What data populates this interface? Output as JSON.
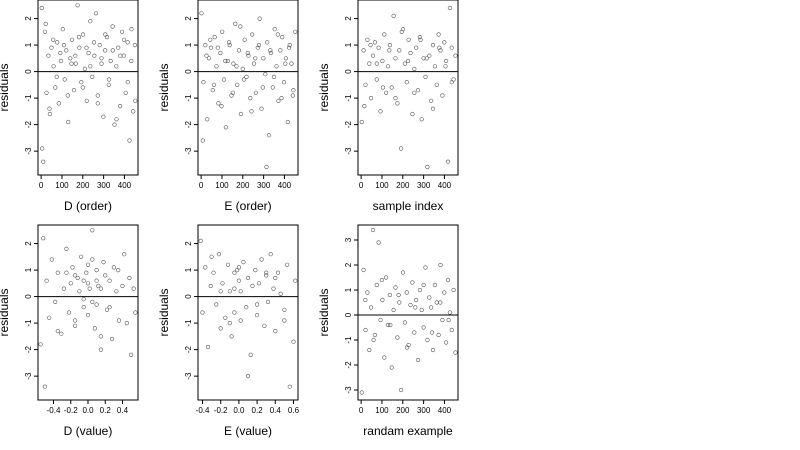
{
  "figure": {
    "background": "#ffffff",
    "point_color": "#555555",
    "axis_color": "#000000"
  },
  "chart_data": [
    {
      "type": "scatter",
      "title": "",
      "xlabel": "D (order)",
      "ylabel": "residuals",
      "xlim": [
        -15,
        465
      ],
      "ylim": [
        -3.9,
        2.7
      ],
      "xticks": [
        0,
        100,
        200,
        300,
        400
      ],
      "xtick_labels": [
        "0",
        "100",
        "200",
        "300",
        "400"
      ],
      "yticks": [
        -3,
        -2,
        -1,
        0,
        1,
        2
      ],
      "ytick_labels": [
        "-3",
        "-2",
        "-1",
        "0",
        "1",
        "2"
      ],
      "hline": 0,
      "grid": false,
      "legend": "none",
      "x": [
        3,
        10,
        18,
        26,
        35,
        42,
        50,
        60,
        68,
        77,
        85,
        95,
        104,
        113,
        121,
        130,
        140,
        148,
        158,
        166,
        175,
        183,
        193,
        201,
        210,
        219,
        228,
        236,
        245,
        255,
        263,
        272,
        281,
        290,
        299,
        307,
        316,
        325,
        334,
        343,
        352,
        361,
        370,
        379,
        388,
        397,
        406,
        415,
        424,
        433,
        442,
        450,
        5,
        22,
        40,
        58,
        75,
        92,
        110,
        128,
        146,
        164,
        182,
        200,
        218,
        236,
        254,
        272,
        290,
        308,
        326,
        344,
        362,
        380,
        398,
        416,
        434,
        452
      ],
      "y": [
        2.4,
        -3.4,
        1.5,
        -0.8,
        0.6,
        -1.6,
        0.9,
        0.2,
        -0.6,
        1.1,
        -1.2,
        0.4,
        1.6,
        -0.3,
        0.8,
        -1.9,
        0.5,
        1.2,
        -0.7,
        0.3,
        2.5,
        0.9,
        -0.4,
        1.4,
        0.1,
        -1.1,
        0.7,
        1.9,
        -0.2,
        0.6,
        2.2,
        -0.9,
        1.0,
        0.3,
        -1.7,
        0.8,
        1.3,
        -0.5,
        0.4,
        1.7,
        -2.0,
        0.2,
        0.9,
        -1.3,
        1.5,
        0.6,
        -0.8,
        1.1,
        -2.6,
        0.4,
        -1.5,
        1.0,
        -2.9,
        1.8,
        -1.4,
        1.2,
        -0.2,
        0.7,
        1.0,
        -0.9,
        0.3,
        0.6,
        1.3,
        -0.6,
        0.9,
        0.2,
        1.1,
        -1.2,
        0.5,
        1.4,
        -0.3,
        0.8,
        -1.8,
        0.6,
        1.2,
        -0.4,
        1.6,
        -1.1
      ]
    },
    {
      "type": "scatter",
      "title": "",
      "xlabel": "E (order)",
      "ylabel": "residuals",
      "xlim": [
        -15,
        465
      ],
      "ylim": [
        -3.9,
        2.7
      ],
      "xticks": [
        0,
        100,
        200,
        300,
        400
      ],
      "xtick_labels": [
        "0",
        "100",
        "200",
        "300",
        "400"
      ],
      "yticks": [
        -3,
        -2,
        -1,
        0,
        1,
        2
      ],
      "ytick_labels": [
        "-3",
        "-2",
        "-1",
        "0",
        "1",
        "2"
      ],
      "hline": 0,
      "grid": false,
      "legend": "none",
      "x": [
        2,
        11,
        20,
        29,
        38,
        47,
        56,
        65,
        74,
        83,
        92,
        101,
        110,
        119,
        128,
        137,
        146,
        155,
        164,
        173,
        182,
        191,
        200,
        209,
        218,
        227,
        236,
        245,
        254,
        263,
        272,
        281,
        290,
        299,
        308,
        317,
        326,
        335,
        344,
        353,
        362,
        371,
        380,
        389,
        398,
        407,
        416,
        425,
        434,
        443,
        452,
        460,
        8,
        26,
        44,
        62,
        80,
        98,
        116,
        134,
        152,
        170,
        188,
        206,
        224,
        242,
        260,
        278,
        296,
        314,
        332,
        350,
        368,
        386,
        404,
        422,
        440,
        458
      ],
      "y": [
        2.2,
        -0.4,
        1.0,
        -1.8,
        0.5,
        0.9,
        -0.7,
        1.3,
        0.2,
        -1.2,
        0.7,
        1.5,
        -0.3,
        -2.1,
        0.4,
        1.0,
        -0.9,
        0.3,
        1.8,
        -0.5,
        0.8,
        -1.6,
        0.1,
        1.2,
        -0.2,
        0.6,
        -1.0,
        1.4,
        0.3,
        -0.8,
        0.9,
        2.0,
        -1.4,
        0.5,
        -0.1,
        1.1,
        -2.4,
        0.7,
        -0.6,
        1.6,
        0.2,
        -1.1,
        0.8,
        1.3,
        -0.4,
        0.5,
        -1.9,
        1.0,
        0.3,
        -0.7,
        1.5,
        -3.4,
        -2.6,
        0.6,
        1.2,
        -0.5,
        0.9,
        -1.3,
        0.4,
        1.1,
        -0.8,
        0.2,
        1.7,
        -0.3,
        0.7,
        -1.5,
        0.5,
        1.0,
        -0.6,
        -3.6,
        0.8,
        -0.2,
        1.4,
        -1.0,
        0.3,
        0.9,
        -0.9,
        0.6
      ]
    },
    {
      "type": "scatter",
      "title": "",
      "xlabel": "sample index",
      "ylabel": "residuals",
      "xlim": [
        -15,
        465
      ],
      "ylim": [
        -3.9,
        2.7
      ],
      "xticks": [
        0,
        100,
        200,
        300,
        400
      ],
      "xtick_labels": [
        "0",
        "100",
        "200",
        "300",
        "400"
      ],
      "yticks": [
        -3,
        -2,
        -1,
        0,
        1,
        2
      ],
      "ytick_labels": [
        "-3",
        "-2",
        "-1",
        "0",
        "1",
        "2"
      ],
      "hline": 0,
      "grid": false,
      "legend": "none",
      "x": [
        3,
        12,
        21,
        30,
        39,
        48,
        57,
        66,
        75,
        84,
        93,
        102,
        111,
        120,
        129,
        138,
        147,
        156,
        165,
        174,
        183,
        192,
        201,
        210,
        219,
        228,
        237,
        246,
        255,
        264,
        273,
        282,
        291,
        300,
        309,
        318,
        327,
        336,
        345,
        354,
        363,
        372,
        381,
        390,
        399,
        408,
        417,
        426,
        435,
        444,
        453,
        15,
        45,
        75,
        105,
        135,
        165,
        195,
        225,
        255,
        285,
        315,
        345,
        375,
        405,
        435
      ],
      "y": [
        -1.9,
        0.8,
        -0.5,
        1.2,
        0.3,
        -1.0,
        0.6,
        1.1,
        -0.3,
        0.9,
        -1.5,
        0.4,
        1.4,
        -0.8,
        0.2,
        1.0,
        -0.6,
        2.1,
        0.5,
        -1.2,
        0.8,
        -2.9,
        1.6,
        0.3,
        -0.4,
        1.2,
        0.7,
        -1.6,
        0.1,
        0.9,
        -0.7,
        1.3,
        -1.8,
        0.5,
        -0.2,
        -3.6,
        0.6,
        -1.1,
        1.0,
        0.2,
        -0.5,
        1.4,
        0.8,
        -0.9,
        1.1,
        0.4,
        -3.4,
        2.4,
        0.9,
        -0.3,
        0.6,
        -1.3,
        1.0,
        0.3,
        -0.6,
        0.8,
        -1.0,
        1.5,
        0.4,
        -0.8,
        1.2,
        0.5,
        -1.4,
        0.9,
        0.2,
        -0.4
      ]
    },
    {
      "type": "scatter",
      "title": "",
      "xlabel": "D (value)",
      "ylabel": "residuals",
      "xlim": [
        -0.58,
        0.58
      ],
      "ylim": [
        -3.9,
        2.7
      ],
      "xticks": [
        -0.4,
        -0.2,
        0.0,
        0.2,
        0.4
      ],
      "xtick_labels": [
        "-0.4",
        "-0.2",
        "0.0",
        "0.2",
        "0.4"
      ],
      "yticks": [
        -3,
        -2,
        -1,
        0,
        1,
        2
      ],
      "ytick_labels": [
        "-3",
        "-2",
        "-1",
        "0",
        "1",
        "2"
      ],
      "hline": 0,
      "grid": false,
      "legend": "none",
      "x": [
        -0.55,
        -0.52,
        -0.5,
        -0.48,
        -0.45,
        -0.42,
        -0.38,
        -0.35,
        -0.31,
        -0.28,
        -0.25,
        -0.22,
        -0.2,
        -0.18,
        -0.15,
        -0.12,
        -0.1,
        -0.08,
        -0.05,
        -0.02,
        0.0,
        0.0,
        0.0,
        0.02,
        0.05,
        0.08,
        0.1,
        0.1,
        0.1,
        0.12,
        0.15,
        0.18,
        0.2,
        0.22,
        0.25,
        0.28,
        0.3,
        0.33,
        0.36,
        0.4,
        0.42,
        0.45,
        0.48,
        0.5,
        0.53,
        0.55,
        -0.05,
        -0.05,
        0.05,
        0.05,
        0.15,
        0.15,
        -0.15,
        -0.15,
        0.25,
        -0.25,
        0.35,
        -0.35
      ],
      "y": [
        -1.8,
        2.2,
        -3.4,
        0.6,
        -0.8,
        1.4,
        -0.2,
        0.9,
        -1.4,
        0.3,
        1.8,
        -0.6,
        0.5,
        1.1,
        -1.1,
        0.7,
        0.2,
        1.5,
        -0.4,
        0.9,
        1.2,
        0.5,
        -0.7,
        0.3,
        2.5,
        -1.2,
        1.0,
        0.6,
        -0.3,
        0.4,
        -2.0,
        1.3,
        0.8,
        -0.5,
        0.6,
        -1.6,
        1.1,
        0.2,
        -0.9,
        0.4,
        1.6,
        -1.0,
        0.7,
        -2.2,
        0.3,
        -0.6,
        -0.1,
        0.6,
        1.4,
        -0.2,
        0.3,
        -1.5,
        0.8,
        -0.9,
        -0.4,
        0.9,
        1.0,
        -1.3
      ]
    },
    {
      "type": "scatter",
      "title": "",
      "xlabel": "E (value)",
      "ylabel": "residuals",
      "xlim": [
        -0.45,
        0.65
      ],
      "ylim": [
        -3.9,
        2.7
      ],
      "xticks": [
        -0.4,
        -0.2,
        0.0,
        0.2,
        0.4,
        0.6
      ],
      "xtick_labels": [
        "-0.4",
        "-0.2",
        "0.0",
        "0.2",
        "0.4",
        "0.6"
      ],
      "yticks": [
        -3,
        -2,
        -1,
        0,
        1,
        2
      ],
      "ytick_labels": [
        "-3",
        "-2",
        "-1",
        "0",
        "1",
        "2"
      ],
      "hline": 0,
      "grid": false,
      "legend": "none",
      "x": [
        -0.42,
        -0.4,
        -0.37,
        -0.34,
        -0.31,
        -0.28,
        -0.25,
        -0.22,
        -0.2,
        -0.18,
        -0.15,
        -0.12,
        -0.1,
        -0.08,
        -0.05,
        -0.05,
        -0.05,
        -0.02,
        0.0,
        0.02,
        0.02,
        0.05,
        0.08,
        0.1,
        0.13,
        0.15,
        0.18,
        0.2,
        0.22,
        0.25,
        0.28,
        0.3,
        0.32,
        0.35,
        0.38,
        0.4,
        0.43,
        0.46,
        0.5,
        0.53,
        0.56,
        0.6,
        0.62,
        -0.3,
        -0.1,
        0.1,
        0.3,
        0.5,
        -0.2,
        0.0,
        0.2,
        0.4
      ],
      "y": [
        2.1,
        -0.6,
        1.1,
        -1.9,
        0.4,
        0.9,
        -0.3,
        1.6,
        -1.2,
        0.5,
        -0.8,
        1.2,
        0.2,
        -1.5,
        0.9,
        0.3,
        -0.6,
        1.0,
        0.6,
        -0.9,
        0.2,
        1.3,
        -0.4,
        0.7,
        -2.2,
        0.4,
        1.0,
        -0.7,
        0.5,
        1.4,
        -1.1,
        0.8,
        -0.2,
        1.6,
        0.3,
        -1.3,
        0.9,
        0.1,
        -0.5,
        1.2,
        -3.4,
        -1.7,
        0.6,
        1.5,
        -1.0,
        -3.0,
        0.9,
        -0.9,
        0.2,
        1.1,
        -0.3,
        0.7
      ]
    },
    {
      "type": "scatter",
      "title": "",
      "xlabel": "randam example",
      "ylabel": "residuals",
      "xlim": [
        -15,
        465
      ],
      "ylim": [
        -3.4,
        3.6
      ],
      "xticks": [
        0,
        100,
        200,
        300,
        400
      ],
      "xtick_labels": [
        "0",
        "100",
        "200",
        "300",
        "400"
      ],
      "yticks": [
        -3,
        -2,
        -1,
        0,
        1,
        2,
        3
      ],
      "ytick_labels": [
        "-3",
        "-2",
        "-1",
        "0",
        "1",
        "2",
        "3"
      ],
      "hline": 0,
      "grid": false,
      "legend": "none",
      "x": [
        3,
        12,
        21,
        30,
        39,
        48,
        57,
        66,
        75,
        84,
        93,
        102,
        111,
        120,
        129,
        138,
        147,
        156,
        165,
        174,
        183,
        192,
        201,
        210,
        219,
        228,
        237,
        246,
        255,
        264,
        273,
        282,
        291,
        300,
        309,
        318,
        327,
        336,
        345,
        354,
        363,
        372,
        381,
        390,
        399,
        408,
        417,
        426,
        435,
        444,
        453,
        20,
        60,
        100,
        140,
        180,
        220,
        260,
        300,
        340,
        380,
        420
      ],
      "y": [
        -3.1,
        1.8,
        -0.6,
        0.9,
        -1.4,
        0.3,
        3.4,
        -0.8,
        1.2,
        2.9,
        -0.2,
        0.6,
        -1.7,
        1.5,
        -0.4,
        0.8,
        -2.1,
        0.2,
        1.1,
        -0.9,
        0.5,
        -3.0,
        1.7,
        -0.3,
        0.9,
        -1.2,
        0.4,
        1.3,
        -0.7,
        0.6,
        -1.8,
        1.0,
        0.2,
        -0.5,
        1.9,
        -1.0,
        0.7,
        0.3,
        -1.4,
        1.2,
        0.5,
        -0.8,
        2.0,
        -0.2,
        0.9,
        -1.1,
        1.4,
        0.1,
        -0.6,
        1.0,
        -1.5,
        0.6,
        -1.0,
        1.4,
        -0.4,
        0.8,
        -1.3,
        0.3,
        1.2,
        -0.7,
        0.5,
        -0.2
      ]
    }
  ]
}
